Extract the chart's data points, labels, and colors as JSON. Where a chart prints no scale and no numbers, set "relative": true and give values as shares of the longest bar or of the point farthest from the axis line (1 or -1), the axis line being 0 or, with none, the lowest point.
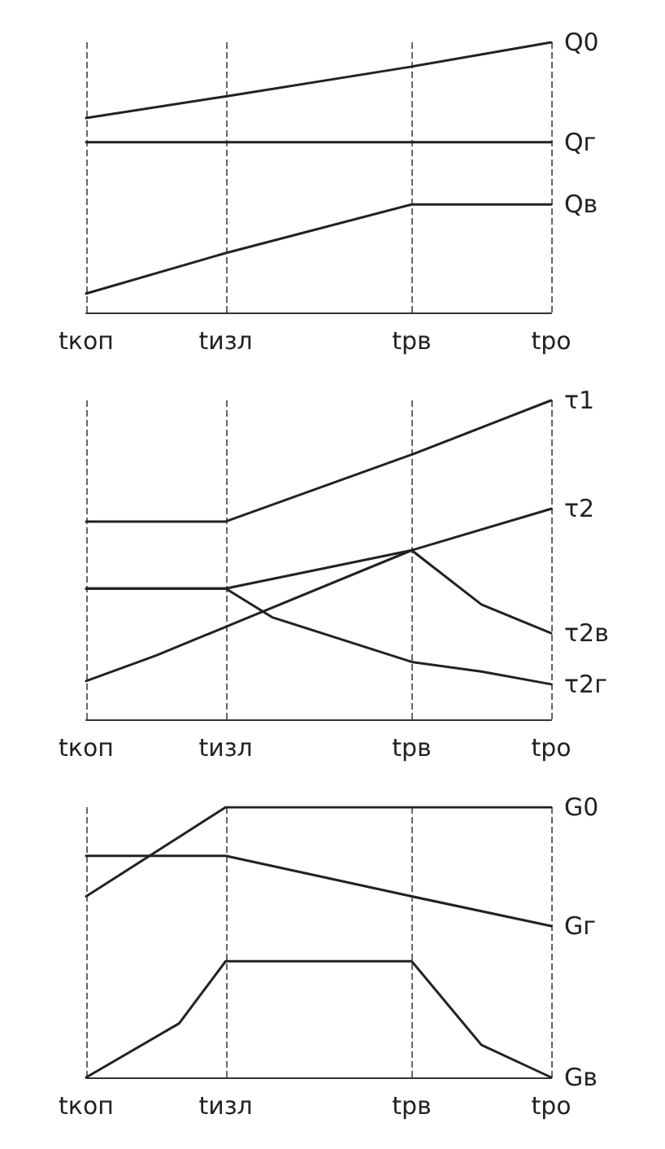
{
  "chart_data": [
    {
      "type": "line",
      "relative": true,
      "categories": [
        "tкоп",
        null,
        null,
        null,
        null,
        null,
        "tизл",
        null,
        null,
        null,
        null,
        null,
        null,
        null,
        "tрв",
        null,
        null,
        null,
        null,
        null,
        "tро"
      ],
      "grid": "x",
      "legend": false,
      "marker": "none",
      "line_style": "solid",
      "series": [
        {
          "name": "Q0",
          "color": "#222222",
          "values": [
            0.72,
            null,
            null,
            null,
            null,
            null,
            0.8,
            null,
            null,
            null,
            null,
            null,
            null,
            null,
            0.91,
            null,
            null,
            null,
            null,
            null,
            1
          ]
        },
        {
          "name": "Qг",
          "color": "#222222",
          "values": [
            0.63,
            null,
            null,
            null,
            null,
            null,
            0.63,
            null,
            null,
            null,
            null,
            null,
            null,
            null,
            0.63,
            null,
            null,
            null,
            null,
            null,
            0.63
          ]
        },
        {
          "name": "Qв",
          "color": "#222222",
          "values": [
            0.07,
            null,
            null,
            null,
            null,
            null,
            0.22,
            null,
            null,
            null,
            null,
            null,
            null,
            null,
            0.4,
            null,
            null,
            null,
            null,
            null,
            0.4
          ]
        }
      ]
    },
    {
      "type": "line",
      "relative": true,
      "categories": [
        "tкоп",
        null,
        null,
        null,
        null,
        null,
        "tизл",
        null,
        null,
        null,
        null,
        null,
        null,
        null,
        "tрв",
        null,
        null,
        null,
        null,
        null,
        "tро"
      ],
      "grid": "x",
      "legend": false,
      "marker": "none",
      "line_style": "solid",
      "series": [
        {
          "name": "τ1",
          "color": "#222222",
          "values": [
            0.62,
            null,
            null,
            null,
            null,
            null,
            0.62,
            null,
            null,
            null,
            null,
            null,
            null,
            null,
            0.83,
            null,
            null,
            null,
            null,
            null,
            1
          ]
        },
        {
          "name": "τ2",
          "color": "#222222",
          "values": [
            0.41,
            null,
            null,
            null,
            null,
            null,
            0.41,
            null,
            null,
            null,
            null,
            null,
            null,
            null,
            0.53,
            null,
            null,
            null,
            null,
            null,
            0.66
          ]
        },
        {
          "name": "τ2в",
          "color": "#222222",
          "values": [
            0.12,
            null,
            null,
            0.2,
            null,
            null,
            0.29,
            null,
            null,
            null,
            null,
            null,
            null,
            null,
            0.53,
            null,
            null,
            0.36,
            null,
            null,
            0.27
          ]
        },
        {
          "name": "τ2г",
          "color": "#222222",
          "values": [
            0.41,
            null,
            null,
            null,
            null,
            null,
            0.41,
            null,
            0.32,
            null,
            null,
            null,
            null,
            null,
            0.18,
            null,
            null,
            0.15,
            null,
            null,
            0.11
          ]
        }
      ]
    },
    {
      "type": "line",
      "relative": true,
      "categories": [
        "tкоп",
        null,
        null,
        null,
        null,
        null,
        "tизл",
        null,
        null,
        null,
        null,
        null,
        null,
        null,
        "tрв",
        null,
        null,
        null,
        null,
        null,
        "tро"
      ],
      "grid": "x",
      "legend": false,
      "marker": "none",
      "line_style": "solid",
      "series": [
        {
          "name": "G0",
          "color": "#222222",
          "values": [
            0.67,
            null,
            null,
            null,
            null,
            null,
            1,
            null,
            null,
            null,
            null,
            null,
            null,
            null,
            null,
            null,
            null,
            null,
            null,
            null,
            1
          ]
        },
        {
          "name": "Gг",
          "color": "#222222",
          "values": [
            0.82,
            null,
            null,
            null,
            null,
            null,
            0.82,
            null,
            null,
            null,
            null,
            null,
            null,
            null,
            0.67,
            null,
            null,
            null,
            null,
            null,
            0.56
          ]
        },
        {
          "name": "Gв",
          "color": "#222222",
          "values": [
            0,
            null,
            null,
            null,
            0.2,
            null,
            0.43,
            null,
            null,
            null,
            null,
            null,
            null,
            null,
            0.43,
            null,
            null,
            0.12,
            null,
            null,
            0
          ]
        }
      ]
    }
  ]
}
